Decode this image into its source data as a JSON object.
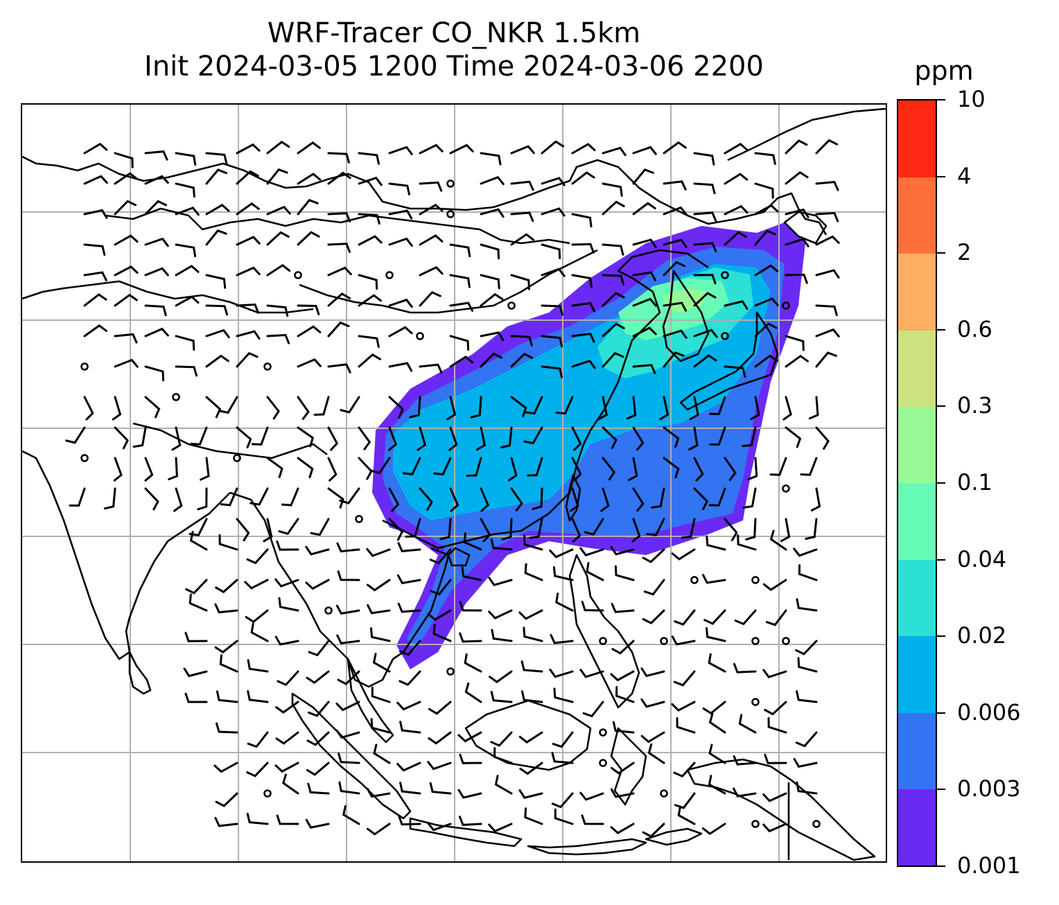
{
  "title": {
    "line1": "WRF-Tracer CO_NKR 1.5km",
    "line2": "Init 2024-03-05 1200 Time 2024-03-06 2200"
  },
  "colorbar": {
    "unit": "ppm",
    "levels": [
      "0.001",
      "0.003",
      "0.006",
      "0.02",
      "0.04",
      "0.1",
      "0.3",
      "0.6",
      "2",
      "4",
      "10"
    ],
    "colors": [
      "#6a2af4",
      "#3374f2",
      "#00b1ec",
      "#2ce0d5",
      "#66fbb7",
      "#98fa97",
      "#cde180",
      "#feaf62",
      "#ff6f39",
      "#ff2814"
    ]
  },
  "map": {
    "gridlines": true,
    "overlay": "wind barbs",
    "coastline_color": "#000000",
    "plume_fill_levels": [
      "0.001",
      "0.003",
      "0.006",
      "0.02",
      "0.04",
      "0.1"
    ]
  }
}
